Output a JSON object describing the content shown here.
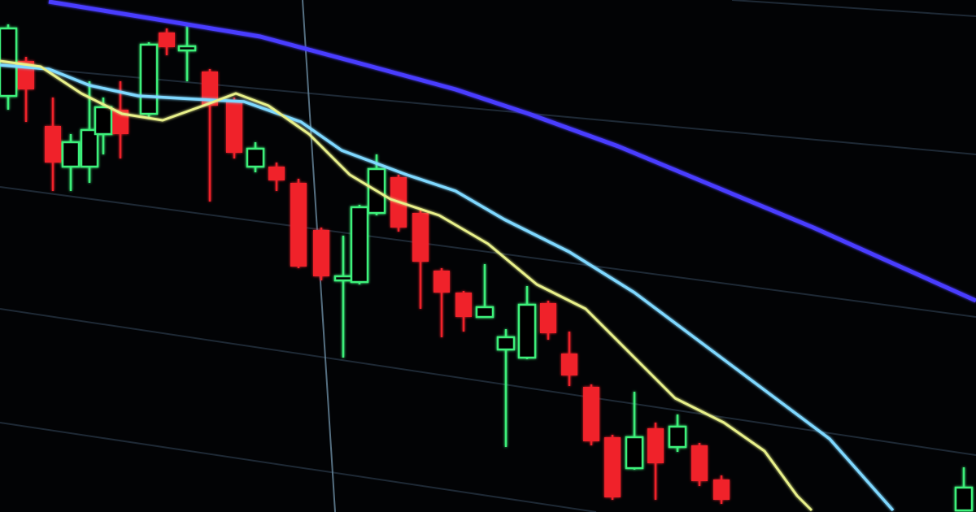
{
  "colors": {
    "background": "#020305",
    "bearish_candle": "#f0202a",
    "bullish_candle": "#3ef07a",
    "ma_long": "#4a3cff",
    "ma_mid": "#7fd8ff",
    "ma_short": "#e8f08a",
    "grid": "#2a3a4a"
  }
}
